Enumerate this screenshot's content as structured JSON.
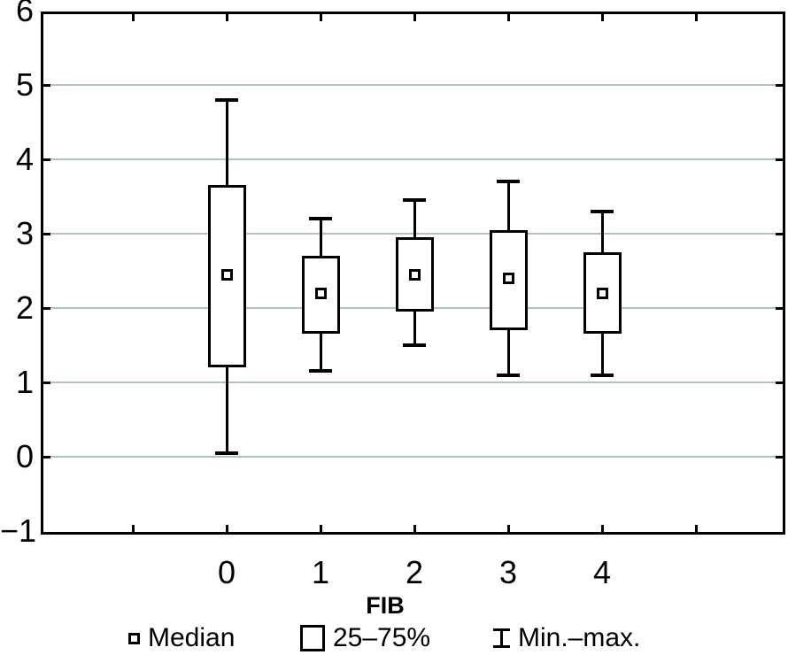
{
  "chart_data": {
    "type": "box",
    "title": "",
    "xlabel": "FIB",
    "ylabel": "",
    "ylim": [
      -1,
      6
    ],
    "y_tick_labels": [
      "6",
      "5",
      "4",
      "3",
      "2",
      "1",
      "0",
      "−1"
    ],
    "x_tick_labels": [
      "0",
      "1",
      "2",
      "3",
      "4"
    ],
    "grid": "horizontal gridlines at integer values 0 through 5",
    "legend_position": "bottom",
    "boxes": [
      {
        "category": "0",
        "min": 0.05,
        "q1": 1.2,
        "median": 2.45,
        "q3": 3.65,
        "max": 4.8
      },
      {
        "category": "1",
        "min": 1.15,
        "q1": 1.65,
        "median": 2.2,
        "q3": 2.7,
        "max": 3.2
      },
      {
        "category": "2",
        "min": 1.5,
        "q1": 1.95,
        "median": 2.45,
        "q3": 2.95,
        "max": 3.45
      },
      {
        "category": "3",
        "min": 1.1,
        "q1": 1.7,
        "median": 2.4,
        "q3": 3.05,
        "max": 3.7
      },
      {
        "category": "4",
        "min": 1.1,
        "q1": 1.65,
        "median": 2.2,
        "q3": 2.75,
        "max": 3.3
      }
    ],
    "legend": [
      {
        "icon": "median-square-icon",
        "label": "Median"
      },
      {
        "icon": "iqr-box-icon",
        "label": "25–75%"
      },
      {
        "icon": "minmax-whisker-icon",
        "label": "Min.–max."
      }
    ],
    "colors": {
      "stroke": "#000000",
      "gridline": "#b3c1c2",
      "background": "#ffffff"
    }
  }
}
